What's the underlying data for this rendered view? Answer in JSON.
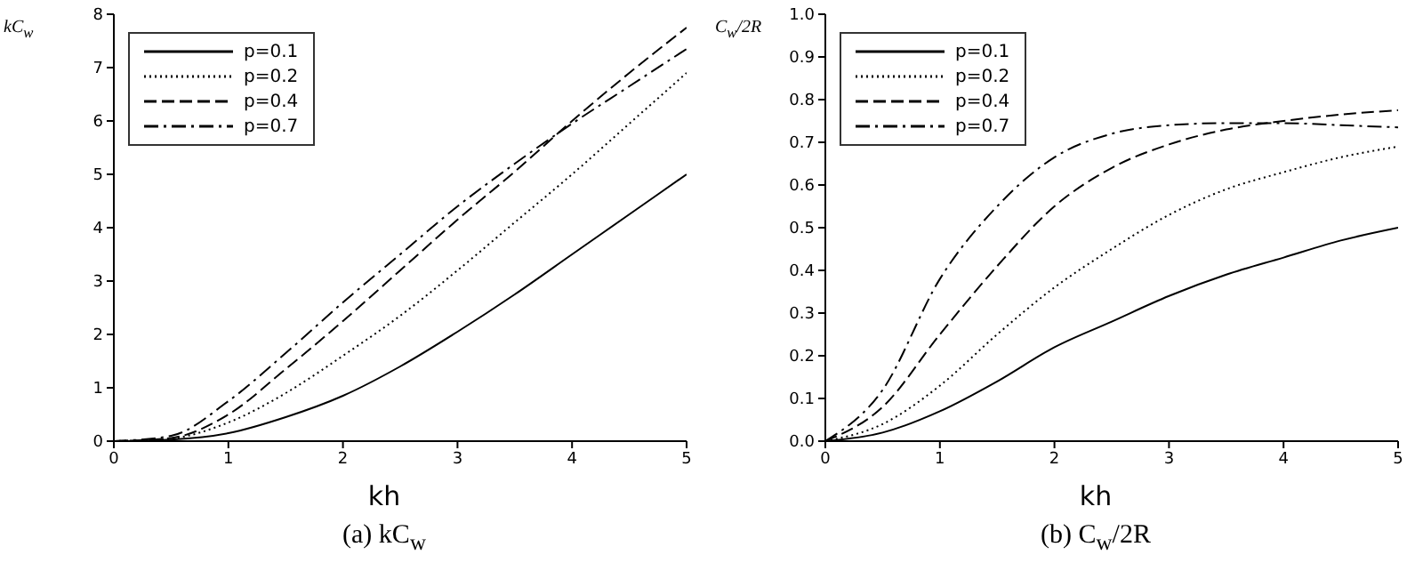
{
  "chart_data": [
    {
      "type": "line",
      "title": "(a)  kC$_{w}$",
      "xlabel": "kh",
      "ylabel": "kC$_{w}$",
      "x": [
        0,
        0.5,
        1,
        1.5,
        2,
        2.5,
        3,
        3.5,
        4,
        4.5,
        5
      ],
      "xlim": [
        0,
        5
      ],
      "xticks": [
        0,
        1,
        2,
        3,
        4,
        5
      ],
      "ylim": [
        0,
        8
      ],
      "yticks": [
        0,
        1,
        2,
        3,
        4,
        5,
        6,
        7,
        8
      ],
      "legend": "top left",
      "grid": false,
      "series": [
        {
          "name": "p=0.1",
          "color": "#000000",
          "line_style": "solid",
          "values": [
            0,
            0.03,
            0.15,
            0.45,
            0.85,
            1.4,
            2.05,
            2.75,
            3.5,
            4.25,
            5.0
          ]
        },
        {
          "name": "p=0.2",
          "color": "#000000",
          "line_style": "dotted",
          "values": [
            0,
            0.05,
            0.35,
            0.9,
            1.6,
            2.35,
            3.2,
            4.1,
            5.0,
            5.95,
            6.9
          ]
        },
        {
          "name": "p=0.4",
          "color": "#000000",
          "line_style": "dashed",
          "values": [
            0,
            0.06,
            0.5,
            1.35,
            2.25,
            3.2,
            4.15,
            5.05,
            6.0,
            6.9,
            7.75
          ]
        },
        {
          "name": "p=0.7",
          "color": "#000000",
          "line_style": "dashdot",
          "values": [
            0,
            0.1,
            0.75,
            1.65,
            2.6,
            3.5,
            4.4,
            5.2,
            5.95,
            6.65,
            7.35
          ]
        }
      ]
    },
    {
      "type": "line",
      "title": "(b)  C$_{w}$/2R",
      "xlabel": "kh",
      "ylabel": "C$_{w}$/2R",
      "x": [
        0,
        0.5,
        1,
        1.5,
        2,
        2.5,
        3,
        3.5,
        4,
        4.5,
        5
      ],
      "xlim": [
        0,
        5
      ],
      "xticks": [
        0,
        1,
        2,
        3,
        4,
        5
      ],
      "ylim": [
        0,
        1
      ],
      "yticks": [
        {
          "value": 0,
          "label": "0.0"
        },
        {
          "value": 0.1,
          "label": "0.1"
        },
        {
          "value": 0.2,
          "label": "0.2"
        },
        {
          "value": 0.3,
          "label": "0.3"
        },
        {
          "value": 0.4,
          "label": "0.4"
        },
        {
          "value": 0.5,
          "label": "0.5"
        },
        {
          "value": 0.6,
          "label": "0.6"
        },
        {
          "value": 0.7,
          "label": "0.7"
        },
        {
          "value": 0.8,
          "label": "0.8"
        },
        {
          "value": 0.9,
          "label": "0.9"
        },
        {
          "value": 1,
          "label": "1.0"
        }
      ],
      "legend": "top left",
      "grid": false,
      "series": [
        {
          "name": "p=0.1",
          "color": "#000000",
          "line_style": "solid",
          "values": [
            0,
            0.02,
            0.07,
            0.14,
            0.22,
            0.28,
            0.34,
            0.39,
            0.43,
            0.47,
            0.5
          ]
        },
        {
          "name": "p=0.2",
          "color": "#000000",
          "line_style": "dotted",
          "values": [
            0,
            0.04,
            0.13,
            0.25,
            0.36,
            0.45,
            0.53,
            0.59,
            0.63,
            0.665,
            0.69
          ]
        },
        {
          "name": "p=0.4",
          "color": "#000000",
          "line_style": "dashed",
          "values": [
            0,
            0.08,
            0.25,
            0.41,
            0.55,
            0.64,
            0.695,
            0.73,
            0.75,
            0.765,
            0.775
          ]
        },
        {
          "name": "p=0.7",
          "color": "#000000",
          "line_style": "dashdot",
          "values": [
            0,
            0.12,
            0.38,
            0.55,
            0.665,
            0.72,
            0.74,
            0.745,
            0.745,
            0.74,
            0.735
          ]
        }
      ]
    }
  ]
}
